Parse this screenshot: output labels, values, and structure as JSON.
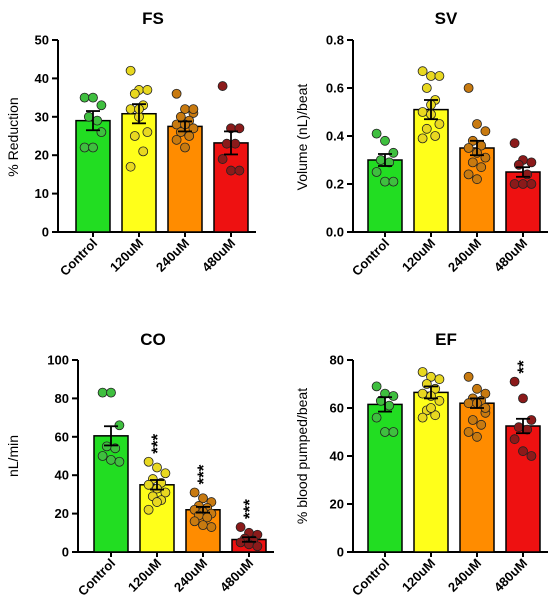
{
  "colors": {
    "Control": "#22dd22",
    "120uM": "#ffff1a",
    "240uM": "#ff8c00",
    "480uM": "#ee1111",
    "dot_Control": "#3fbf3f",
    "dot_120uM": "#e8d820",
    "dot_240uM": "#c87a10",
    "dot_480uM": "#8b1a1a"
  },
  "chart_data": [
    {
      "type": "bar",
      "title": "FS",
      "ylabel": "% Reduction",
      "ylim": [
        0,
        50
      ],
      "yticks": [
        "0",
        "10",
        "20",
        "30",
        "40",
        "50"
      ],
      "categories": [
        "Control",
        "120uM",
        "240uM",
        "480uM"
      ],
      "values": [
        29,
        30.8,
        27.5,
        23.2
      ],
      "sem": [
        2.5,
        2.5,
        1.3,
        3
      ],
      "significance": [
        "",
        "",
        "",
        ""
      ],
      "points": [
        [
          35,
          35,
          33,
          30,
          29,
          22,
          22,
          26
        ],
        [
          42,
          37,
          37,
          36,
          33,
          32,
          30,
          26,
          25,
          21,
          17,
          32
        ],
        [
          36,
          32,
          31,
          30,
          29,
          28,
          28,
          27,
          26,
          25,
          24,
          22,
          32
        ],
        [
          38,
          27,
          27,
          23,
          23,
          19,
          16,
          16
        ]
      ]
    },
    {
      "type": "bar",
      "title": "SV",
      "ylabel": "Volume (nL)/beat",
      "ylim": [
        0,
        0.8
      ],
      "yticks": [
        "0.0",
        "0.2",
        "0.4",
        "0.6",
        "0.8"
      ],
      "categories": [
        "Control",
        "120uM",
        "240uM",
        "480uM"
      ],
      "values": [
        0.3,
        0.51,
        0.35,
        0.25
      ],
      "sem": [
        0.025,
        0.04,
        0.03,
        0.02
      ],
      "significance": [
        "",
        "",
        "",
        ""
      ],
      "points": [
        [
          0.41,
          0.38,
          0.33,
          0.3,
          0.29,
          0.25,
          0.21,
          0.21
        ],
        [
          0.67,
          0.65,
          0.65,
          0.6,
          0.55,
          0.5,
          0.49,
          0.45,
          0.43,
          0.4,
          0.39,
          0.53
        ],
        [
          0.6,
          0.45,
          0.42,
          0.38,
          0.36,
          0.35,
          0.33,
          0.31,
          0.29,
          0.27,
          0.24,
          0.22
        ],
        [
          0.37,
          0.3,
          0.29,
          0.28,
          0.24,
          0.2,
          0.2,
          0.2
        ]
      ]
    },
    {
      "type": "bar",
      "title": "CO",
      "ylabel": "nL/min",
      "ylim": [
        0,
        100
      ],
      "yticks": [
        "0",
        "20",
        "40",
        "60",
        "80",
        "100"
      ],
      "categories": [
        "Control",
        "120uM",
        "240uM",
        "480uM"
      ],
      "values": [
        60.5,
        35,
        22,
        6.5
      ],
      "sem": [
        5,
        2.5,
        1.5,
        1.2
      ],
      "significance": [
        "",
        "***",
        "***",
        "***"
      ],
      "points": [
        [
          83,
          83,
          66,
          55,
          54,
          50,
          48,
          47
        ],
        [
          47,
          44,
          41,
          38,
          36,
          35,
          33,
          31,
          29,
          27,
          22,
          26
        ],
        [
          31,
          28,
          26,
          24,
          23,
          22,
          21,
          20,
          19,
          18,
          16,
          14,
          13
        ],
        [
          13,
          10,
          9,
          7,
          6,
          5,
          4,
          3
        ]
      ]
    },
    {
      "type": "bar",
      "title": "EF",
      "ylabel": "% blood pumped/beat",
      "ylim": [
        0,
        80
      ],
      "yticks": [
        "0",
        "20",
        "40",
        "60",
        "80"
      ],
      "categories": [
        "Control",
        "120uM",
        "240uM",
        "480uM"
      ],
      "values": [
        61.5,
        66.5,
        62,
        52.5
      ],
      "sem": [
        3,
        2.5,
        2,
        3
      ],
      "significance": [
        "",
        "",
        "",
        "**"
      ],
      "points": [
        [
          69,
          66,
          65,
          63,
          61,
          56,
          50,
          50
        ],
        [
          75,
          73,
          72,
          70,
          68,
          66,
          65,
          63,
          59,
          57,
          56,
          60
        ],
        [
          73,
          68,
          66,
          64,
          63,
          62,
          62,
          58,
          55,
          53,
          50,
          48,
          60
        ],
        [
          71,
          64,
          55,
          52,
          51,
          47,
          42,
          40
        ]
      ]
    }
  ]
}
